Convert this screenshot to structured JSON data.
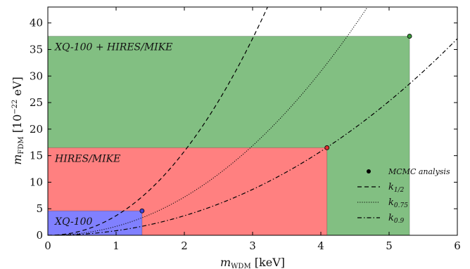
{
  "chart_data": {
    "type": "area",
    "xlabel": {
      "main": "m",
      "sub": "WDM",
      "unit": " [keV]"
    },
    "ylabel": {
      "main": "m",
      "sub": "FDM",
      "unit": " [10",
      "exp": "−22",
      "unit2": " eV]"
    },
    "xlim": [
      0,
      6
    ],
    "ylim": [
      0,
      43
    ],
    "xticks": [
      0,
      1,
      2,
      3,
      4,
      5,
      6
    ],
    "yticks": [
      0,
      5,
      10,
      15,
      20,
      25,
      30,
      35,
      40
    ],
    "grid": false,
    "regions": [
      {
        "name": "XQ-100 + HIRES/MIKE",
        "x_max": 5.3,
        "y_max": 37.5,
        "color": "#82bf82"
      },
      {
        "name": "HIRES/MIKE",
        "x_max": 4.09,
        "y_max": 16.5,
        "color": "#ff8080"
      },
      {
        "name": "XQ-100",
        "x_max": 1.38,
        "y_max": 4.6,
        "color": "#8080ff"
      }
    ],
    "points": [
      {
        "x": 5.3,
        "y": 37.5,
        "color": "#3a9a3a"
      },
      {
        "x": 4.09,
        "y": 16.5,
        "color": "#e03030"
      },
      {
        "x": 1.38,
        "y": 4.6,
        "color": "#4040d0"
      }
    ],
    "curves": [
      {
        "name": "k_{1/2}",
        "label_main": "k",
        "label_sub": "1/2",
        "style": "dashed",
        "exponent": 2.1,
        "coefficient": 3.69
      },
      {
        "name": "k_{0.75}",
        "label_main": "k",
        "label_sub": "0.75",
        "style": "dotted",
        "exponent": 2.1,
        "coefficient": 1.68
      },
      {
        "name": "k_{0.9}",
        "label_main": "k",
        "label_sub": "0.9",
        "style": "dashdot",
        "exponent": 2.1,
        "coefficient": 0.86
      }
    ],
    "legend": {
      "position": "lower-right",
      "entries": [
        {
          "kind": "marker",
          "label": "MCMC analysis"
        },
        {
          "kind": "dashed",
          "label_main": "k",
          "label_sub": "1/2"
        },
        {
          "kind": "dotted",
          "label_main": "k",
          "label_sub": "0.75"
        },
        {
          "kind": "dashdot",
          "label_main": "k",
          "label_sub": "0.9"
        }
      ]
    }
  }
}
